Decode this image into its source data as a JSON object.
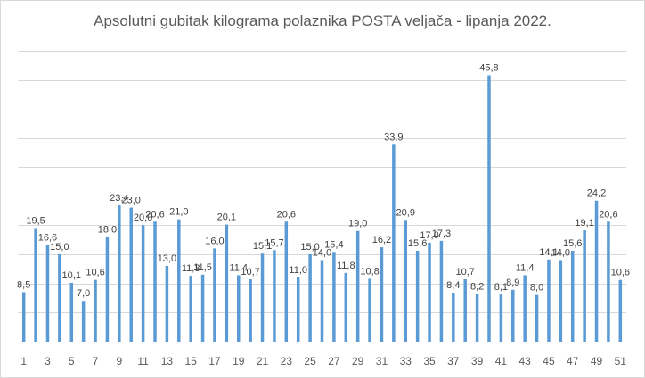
{
  "chart_data": {
    "type": "bar",
    "title": "Apsolutni gubitak kilograma polaznika POSTA veljača - lipanja 2022.",
    "xlabel": "",
    "ylabel": "",
    "ylim": [
      0,
      50
    ],
    "grid": true,
    "bar_color": "#5b9bd5",
    "categories": [
      "1",
      "2",
      "3",
      "4",
      "5",
      "6",
      "7",
      "8",
      "9",
      "10",
      "11",
      "12",
      "13",
      "14",
      "15",
      "16",
      "17",
      "18",
      "19",
      "20",
      "21",
      "22",
      "23",
      "24",
      "25",
      "26",
      "27",
      "28",
      "29",
      "30",
      "31",
      "32",
      "33",
      "34",
      "35",
      "36",
      "37",
      "38",
      "39",
      "40",
      "41",
      "42",
      "43",
      "44",
      "45",
      "46",
      "47",
      "48",
      "49",
      "50",
      "51"
    ],
    "x_tick_labels": [
      "1",
      "3",
      "5",
      "7",
      "9",
      "11",
      "13",
      "15",
      "17",
      "19",
      "21",
      "23",
      "25",
      "27",
      "29",
      "31",
      "33",
      "35",
      "37",
      "39",
      "41",
      "43",
      "45",
      "47",
      "49",
      "51"
    ],
    "values": [
      8.5,
      19.5,
      16.6,
      15.0,
      10.1,
      7.0,
      10.6,
      18.0,
      23.4,
      23.0,
      20.0,
      20.6,
      13.0,
      21.0,
      11.3,
      11.5,
      16.0,
      20.1,
      11.4,
      10.7,
      15.1,
      15.7,
      20.6,
      11.0,
      15.0,
      14.0,
      15.4,
      11.8,
      19.0,
      10.8,
      16.2,
      33.9,
      20.9,
      15.6,
      17.0,
      17.3,
      8.4,
      10.7,
      8.2,
      45.8,
      8.1,
      8.9,
      11.4,
      8.0,
      14.1,
      14.0,
      15.6,
      19.1,
      24.2,
      20.6,
      10.6
    ],
    "data_labels": [
      "8,5",
      "19,5",
      "16,6",
      "15,0",
      "10,1",
      "7,0",
      "10,6",
      "18,0",
      "23,4",
      "23,0",
      "20,0",
      "20,6",
      "13,0",
      "21,0",
      "11,3",
      "11,5",
      "16,0",
      "20,1",
      "11,4",
      "10,7",
      "15,1",
      "15,7",
      "20,6",
      "11,0",
      "15,0",
      "14,0",
      "15,4",
      "11,8",
      "19,0",
      "10,8",
      "16,2",
      "33,9",
      "20,9",
      "15,6",
      "17,0",
      "17,3",
      "8,4",
      "10,7",
      "8,2",
      "45,8",
      "8,1",
      "8,9",
      "11,4",
      "8,0",
      "14,1",
      "14,0",
      "15,6",
      "19,1",
      "24,2",
      "20,6",
      "10,6"
    ]
  }
}
